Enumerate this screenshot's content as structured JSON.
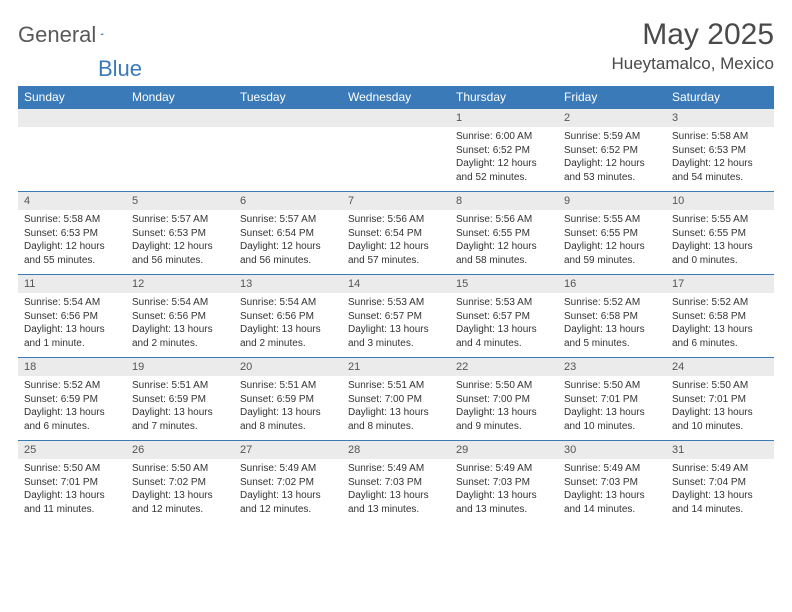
{
  "brand": {
    "part1": "General",
    "part2": "Blue"
  },
  "title": "May 2025",
  "location": "Hueytamalco, Mexico",
  "colors": {
    "header_bg": "#3a7ab8",
    "header_text": "#ffffff",
    "daynum_bg": "#ebebeb",
    "daynum_text": "#555555",
    "body_text": "#333333",
    "rule": "#3a7ab8",
    "title_text": "#4a4a4a",
    "logo_gray": "#595959",
    "logo_blue": "#3a7ab8"
  },
  "dayNames": [
    "Sunday",
    "Monday",
    "Tuesday",
    "Wednesday",
    "Thursday",
    "Friday",
    "Saturday"
  ],
  "weeks": [
    [
      null,
      null,
      null,
      null,
      {
        "n": "1",
        "sr": "6:00 AM",
        "ss": "6:52 PM",
        "dl": "12 hours and 52 minutes."
      },
      {
        "n": "2",
        "sr": "5:59 AM",
        "ss": "6:52 PM",
        "dl": "12 hours and 53 minutes."
      },
      {
        "n": "3",
        "sr": "5:58 AM",
        "ss": "6:53 PM",
        "dl": "12 hours and 54 minutes."
      }
    ],
    [
      {
        "n": "4",
        "sr": "5:58 AM",
        "ss": "6:53 PM",
        "dl": "12 hours and 55 minutes."
      },
      {
        "n": "5",
        "sr": "5:57 AM",
        "ss": "6:53 PM",
        "dl": "12 hours and 56 minutes."
      },
      {
        "n": "6",
        "sr": "5:57 AM",
        "ss": "6:54 PM",
        "dl": "12 hours and 56 minutes."
      },
      {
        "n": "7",
        "sr": "5:56 AM",
        "ss": "6:54 PM",
        "dl": "12 hours and 57 minutes."
      },
      {
        "n": "8",
        "sr": "5:56 AM",
        "ss": "6:55 PM",
        "dl": "12 hours and 58 minutes."
      },
      {
        "n": "9",
        "sr": "5:55 AM",
        "ss": "6:55 PM",
        "dl": "12 hours and 59 minutes."
      },
      {
        "n": "10",
        "sr": "5:55 AM",
        "ss": "6:55 PM",
        "dl": "13 hours and 0 minutes."
      }
    ],
    [
      {
        "n": "11",
        "sr": "5:54 AM",
        "ss": "6:56 PM",
        "dl": "13 hours and 1 minute."
      },
      {
        "n": "12",
        "sr": "5:54 AM",
        "ss": "6:56 PM",
        "dl": "13 hours and 2 minutes."
      },
      {
        "n": "13",
        "sr": "5:54 AM",
        "ss": "6:56 PM",
        "dl": "13 hours and 2 minutes."
      },
      {
        "n": "14",
        "sr": "5:53 AM",
        "ss": "6:57 PM",
        "dl": "13 hours and 3 minutes."
      },
      {
        "n": "15",
        "sr": "5:53 AM",
        "ss": "6:57 PM",
        "dl": "13 hours and 4 minutes."
      },
      {
        "n": "16",
        "sr": "5:52 AM",
        "ss": "6:58 PM",
        "dl": "13 hours and 5 minutes."
      },
      {
        "n": "17",
        "sr": "5:52 AM",
        "ss": "6:58 PM",
        "dl": "13 hours and 6 minutes."
      }
    ],
    [
      {
        "n": "18",
        "sr": "5:52 AM",
        "ss": "6:59 PM",
        "dl": "13 hours and 6 minutes."
      },
      {
        "n": "19",
        "sr": "5:51 AM",
        "ss": "6:59 PM",
        "dl": "13 hours and 7 minutes."
      },
      {
        "n": "20",
        "sr": "5:51 AM",
        "ss": "6:59 PM",
        "dl": "13 hours and 8 minutes."
      },
      {
        "n": "21",
        "sr": "5:51 AM",
        "ss": "7:00 PM",
        "dl": "13 hours and 8 minutes."
      },
      {
        "n": "22",
        "sr": "5:50 AM",
        "ss": "7:00 PM",
        "dl": "13 hours and 9 minutes."
      },
      {
        "n": "23",
        "sr": "5:50 AM",
        "ss": "7:01 PM",
        "dl": "13 hours and 10 minutes."
      },
      {
        "n": "24",
        "sr": "5:50 AM",
        "ss": "7:01 PM",
        "dl": "13 hours and 10 minutes."
      }
    ],
    [
      {
        "n": "25",
        "sr": "5:50 AM",
        "ss": "7:01 PM",
        "dl": "13 hours and 11 minutes."
      },
      {
        "n": "26",
        "sr": "5:50 AM",
        "ss": "7:02 PM",
        "dl": "13 hours and 12 minutes."
      },
      {
        "n": "27",
        "sr": "5:49 AM",
        "ss": "7:02 PM",
        "dl": "13 hours and 12 minutes."
      },
      {
        "n": "28",
        "sr": "5:49 AM",
        "ss": "7:03 PM",
        "dl": "13 hours and 13 minutes."
      },
      {
        "n": "29",
        "sr": "5:49 AM",
        "ss": "7:03 PM",
        "dl": "13 hours and 13 minutes."
      },
      {
        "n": "30",
        "sr": "5:49 AM",
        "ss": "7:03 PM",
        "dl": "13 hours and 14 minutes."
      },
      {
        "n": "31",
        "sr": "5:49 AM",
        "ss": "7:04 PM",
        "dl": "13 hours and 14 minutes."
      }
    ]
  ]
}
